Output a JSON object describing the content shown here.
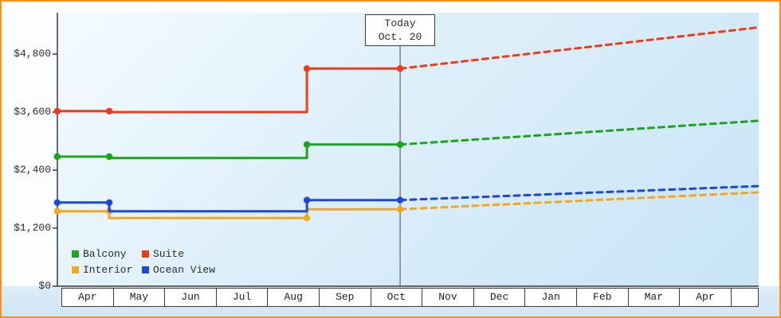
{
  "frame_border_color": "#ff9015",
  "legend": {
    "rows": [
      [
        "Balcony",
        "Suite"
      ],
      [
        "Interior",
        "Ocean View"
      ]
    ]
  },
  "chart_data": {
    "type": "line",
    "title": "",
    "x_tick_labels": [
      "Apr",
      "May",
      "Jun",
      "Jul",
      "Aug",
      "Sep",
      "Oct",
      "Nov",
      "Dec",
      "Jan",
      "Feb",
      "Mar",
      "Apr"
    ],
    "y_ticks": [
      {
        "value": 0,
        "label": "$0"
      },
      {
        "value": 1200,
        "label": "$1,200"
      },
      {
        "value": 2400,
        "label": "$2,400"
      },
      {
        "value": 3600,
        "label": "$3,600"
      },
      {
        "value": 4800,
        "label": "$4,800"
      }
    ],
    "ylim": [
      0,
      5650
    ],
    "today": {
      "line1": "Today",
      "line2": "Oct. 20",
      "month_pos": 6.58
    },
    "series": [
      {
        "name": "Interior",
        "color": "#f4a71d",
        "solid": [
          [
            -0.08,
            1550
          ],
          [
            0.93,
            1550
          ],
          [
            0.93,
            1410
          ],
          [
            4.77,
            1410
          ],
          [
            4.77,
            1590
          ],
          [
            6.58,
            1590
          ]
        ],
        "dashed_forecast": [
          [
            6.58,
            1590
          ],
          [
            13.54,
            1940
          ]
        ],
        "markers": [
          [
            -0.08,
            1550
          ],
          [
            0.93,
            1550
          ],
          [
            4.77,
            1410
          ],
          [
            6.58,
            1590
          ]
        ]
      },
      {
        "name": "Ocean View",
        "color": "#1e46db",
        "solid": [
          [
            -0.08,
            1730
          ],
          [
            0.93,
            1730
          ],
          [
            0.93,
            1550
          ],
          [
            4.77,
            1550
          ],
          [
            4.77,
            1780
          ],
          [
            6.58,
            1780
          ]
        ],
        "dashed_forecast": [
          [
            6.58,
            1780
          ],
          [
            13.54,
            2070
          ]
        ],
        "markers": [
          [
            -0.08,
            1730
          ],
          [
            0.93,
            1730
          ],
          [
            4.77,
            1780
          ],
          [
            6.58,
            1780
          ]
        ]
      },
      {
        "name": "Balcony",
        "color": "#1ca41c",
        "solid": [
          [
            -0.08,
            2680
          ],
          [
            0.93,
            2680
          ],
          [
            0.93,
            2650
          ],
          [
            4.77,
            2650
          ],
          [
            4.77,
            2930
          ],
          [
            6.58,
            2930
          ]
        ],
        "dashed_forecast": [
          [
            6.58,
            2930
          ],
          [
            13.54,
            3420
          ]
        ],
        "markers": [
          [
            -0.08,
            2680
          ],
          [
            0.93,
            2680
          ],
          [
            4.77,
            2930
          ],
          [
            6.58,
            2930
          ]
        ]
      },
      {
        "name": "Suite",
        "color": "#ef3b17",
        "solid": [
          [
            -0.08,
            3620
          ],
          [
            0.93,
            3620
          ],
          [
            0.93,
            3600
          ],
          [
            4.77,
            3600
          ],
          [
            4.77,
            4500
          ],
          [
            6.58,
            4500
          ]
        ],
        "dashed_forecast": [
          [
            6.58,
            4500
          ],
          [
            13.54,
            5350
          ]
        ],
        "markers": [
          [
            -0.08,
            3620
          ],
          [
            0.93,
            3620
          ],
          [
            4.77,
            4500
          ],
          [
            6.58,
            4500
          ]
        ]
      }
    ]
  }
}
